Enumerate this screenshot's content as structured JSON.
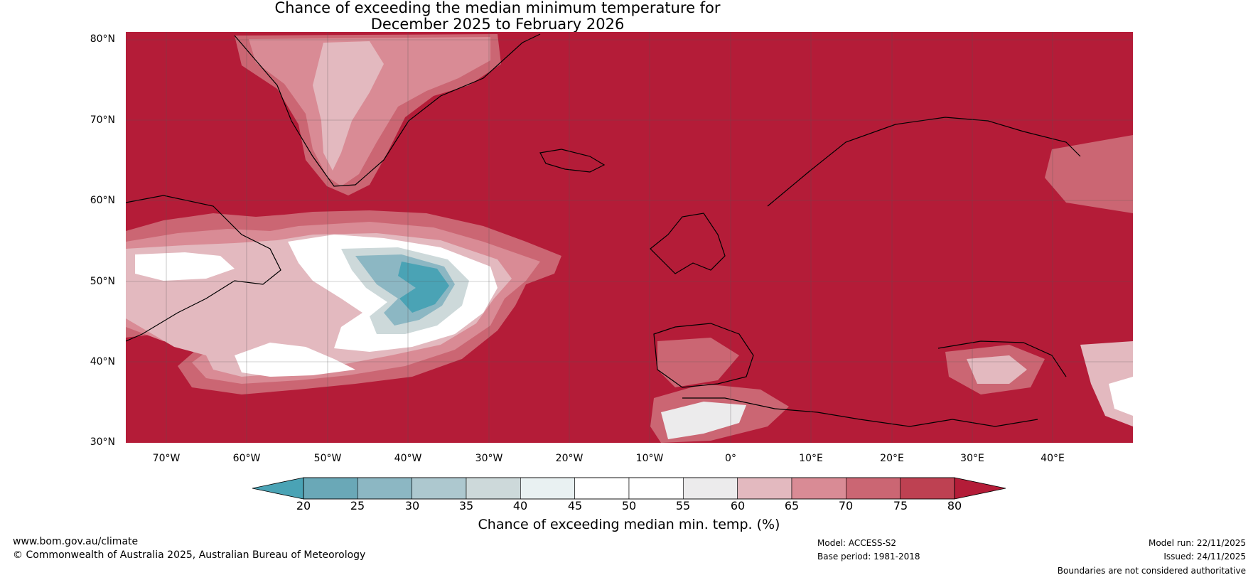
{
  "title": {
    "line1": "Chance of exceeding the median minimum temperature for",
    "line2": "December 2025 to February 2026"
  },
  "map": {
    "region": "North Atlantic, Europe and North Africa",
    "lat_range": [
      30,
      81
    ],
    "lon_range": [
      -75,
      50
    ],
    "lat_labels": [
      "80°N",
      "70°N",
      "60°N",
      "50°N",
      "40°N",
      "30°N"
    ],
    "lon_labels": [
      "70°W",
      "60°W",
      "50°W",
      "40°W",
      "30°W",
      "20°W",
      "10°W",
      "0°",
      "10°E",
      "20°E",
      "30°E",
      "40°E"
    ]
  },
  "colorbar": {
    "ticks": [
      "20",
      "25",
      "30",
      "35",
      "40",
      "45",
      "50",
      "55",
      "60",
      "65",
      "70",
      "75",
      "80"
    ],
    "colors": [
      "#6aa8b7",
      "#8cb7c3",
      "#adc8cf",
      "#cdd9da",
      "#e9f1f2",
      "#ffffff",
      "#ffffff",
      "#ecebec",
      "#e3b9bf",
      "#d98b95",
      "#cb6673",
      "#be4152"
    ],
    "under_color": "#4aa3b5",
    "over_color": "#b41c38",
    "label": "Chance of exceeding median min. temp. (%)"
  },
  "footer": {
    "website": "www.bom.gov.au/climate",
    "copyright": "© Commonwealth of Australia 2025, Australian Bureau of Meteorology",
    "model": "Model: ACCESS-S2",
    "base_period": "Base period: 1981-2018",
    "model_run": "Model run: 22/11/2025",
    "issued": "Issued: 24/11/2025",
    "disclaimer": "Boundaries are not considered authoritative"
  }
}
